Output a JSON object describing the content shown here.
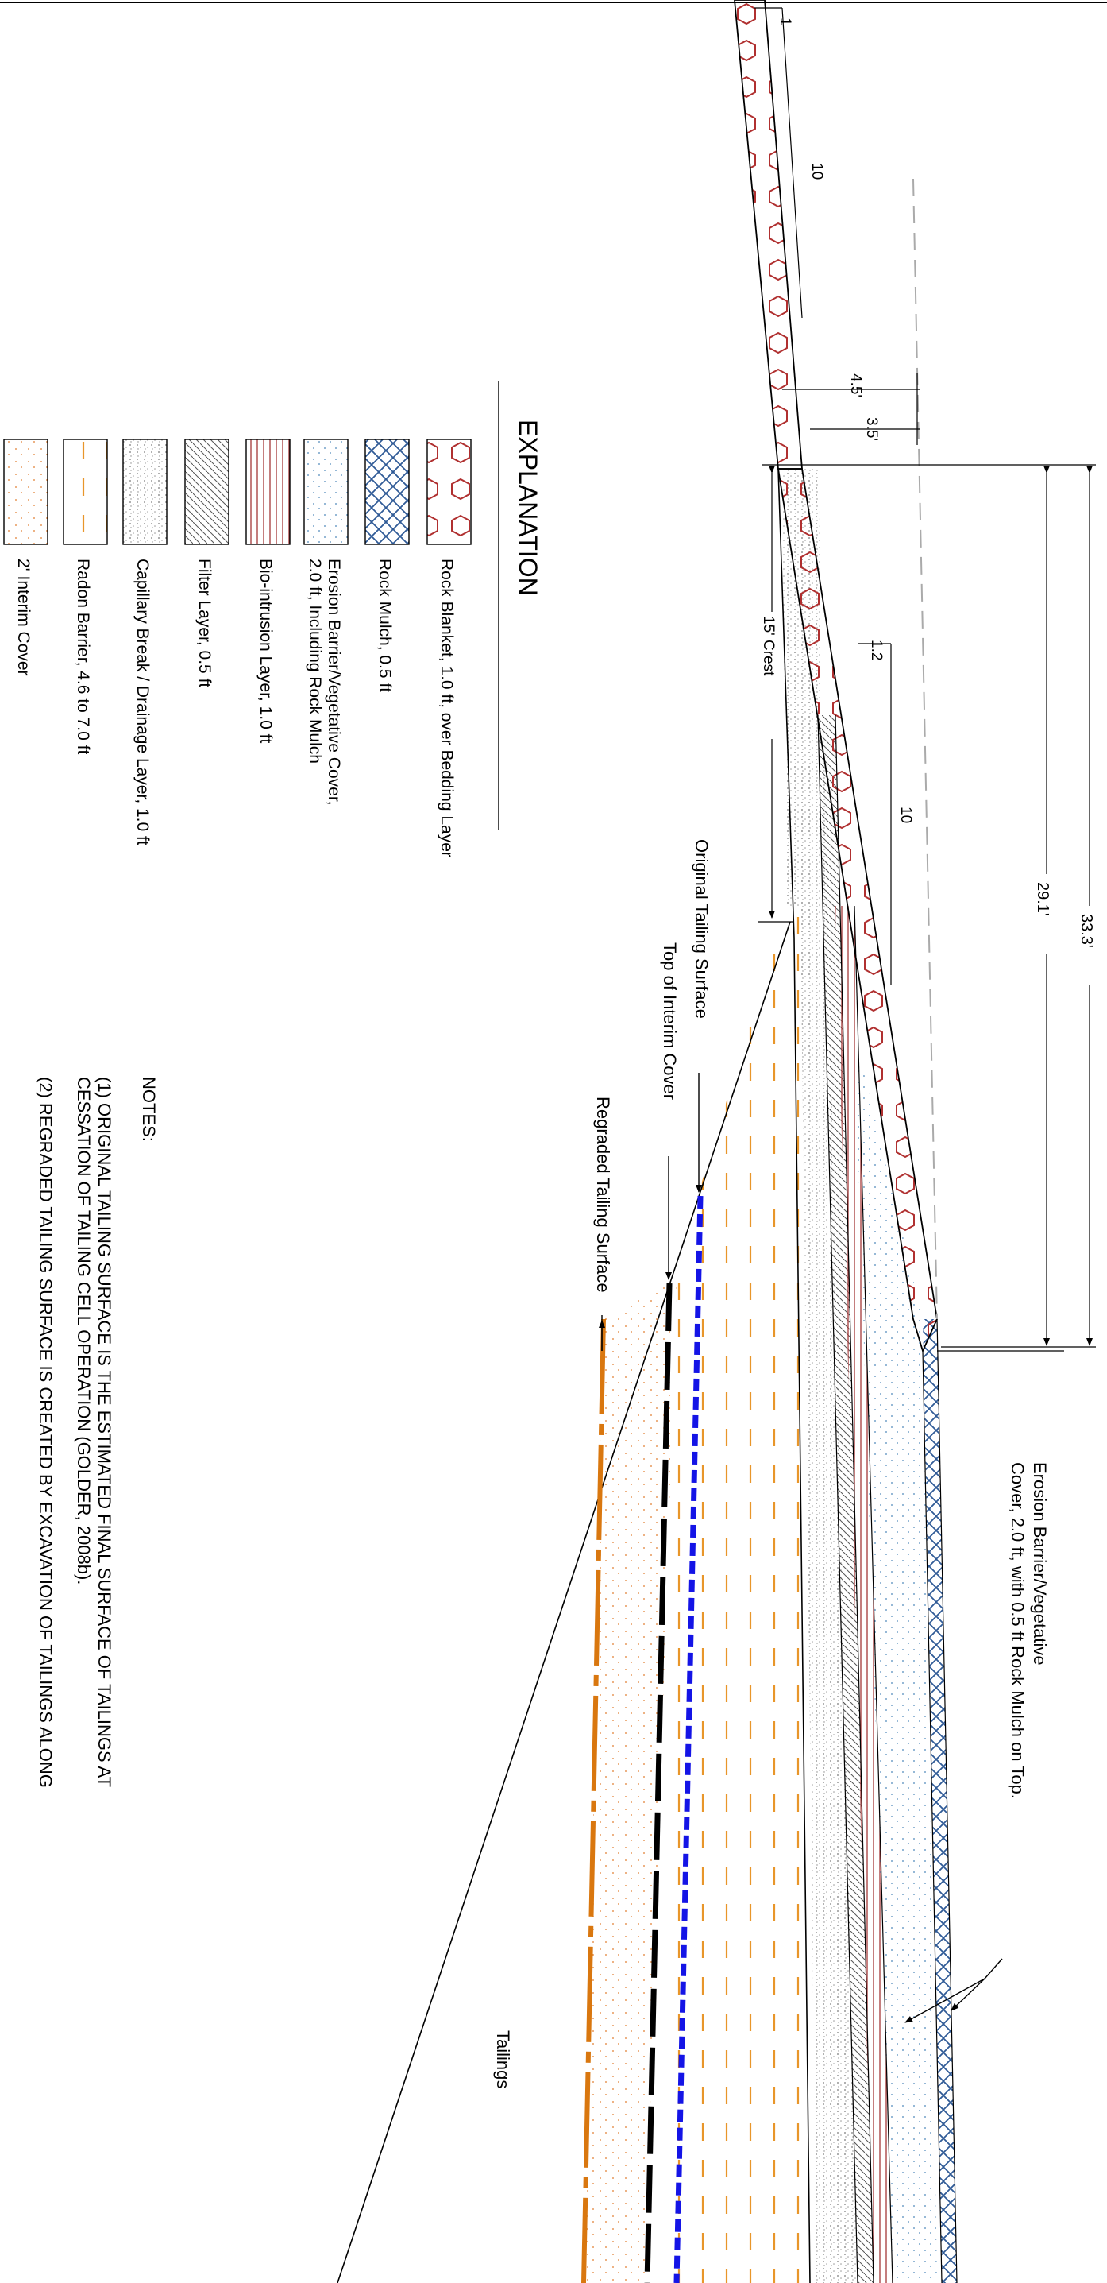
{
  "explanation": {
    "title": "EXPLANATION",
    "items": [
      {
        "lines": [
          "Rock Blanket, 1.0 ft, over Bedding Layer"
        ],
        "pattern": "hexagon-rock-icon"
      },
      {
        "lines": [
          "Rock Mulch, 0.5 ft"
        ],
        "pattern": "crosshatch-icon"
      },
      {
        "lines": [
          "Erosion Barrier/Vegetative Cover,",
          "2.0 ft, Including Rock Mulch"
        ],
        "pattern": "stipple-blue-icon"
      },
      {
        "lines": [
          "Bio-intrusion Layer, 1.0 ft"
        ],
        "pattern": "vertical-red-lines-icon"
      },
      {
        "lines": [
          "Filter Layer, 0.5 ft"
        ],
        "pattern": "diagonal-hatch-icon"
      },
      {
        "lines": [
          "Capillary Break / Drainage Layer, 1.0 ft"
        ],
        "pattern": "gray-stipple-icon"
      },
      {
        "lines": [
          "Radon Barrier, 4.6 to 7.0 ft"
        ],
        "pattern": "orange-dash-icon"
      },
      {
        "lines": [
          "2' Interim Cover"
        ],
        "pattern": "orange-dots-icon"
      }
    ]
  },
  "notes": {
    "title": "NOTES:",
    "items": [
      [
        "(1) ORIGINAL TAILING SURFACE IS THE ESTIMATED FINAL SURFACE OF TAILINGS AT",
        "CESSATION OF TAILING CELL OPERATION (GOLDER, 2008b)."
      ],
      [
        "(2) REGRADED TAILING SURFACE IS CREATED BY EXCAVATION OF TAILINGS ALONG"
      ]
    ]
  },
  "dimensions": {
    "slope_top_rise": "1",
    "slope_top_run": "10",
    "width_a": "4.5'",
    "width_b": "3.5'",
    "crest": "15' Crest",
    "slope_mid_rise": "1.2",
    "slope_mid_run": "10",
    "length_a": "29.1'",
    "length_b": "33.3'"
  },
  "callouts": {
    "original_surface": "Original Tailing Surface",
    "interim_top": "Top of Interim Cover",
    "regraded": "Regraded Tailing Surface",
    "erosion_line1": "Erosion Barrier/Vegetative",
    "erosion_line2": "Cover, 2.0 ft, with 0.5 ft Rock Mulch on Top.",
    "tailings": "Tailings"
  },
  "colors": {
    "rock_red": "#b03030",
    "rock_mulch_blue": "#2f5a96",
    "stipple_blue": "#4a86b8",
    "bio_red": "#a33838",
    "radon_orange": "#e8962a",
    "interim_orange": "#d9822b",
    "interim_line_blue": "#1414e6",
    "regraded_orange": "#d9770f"
  }
}
